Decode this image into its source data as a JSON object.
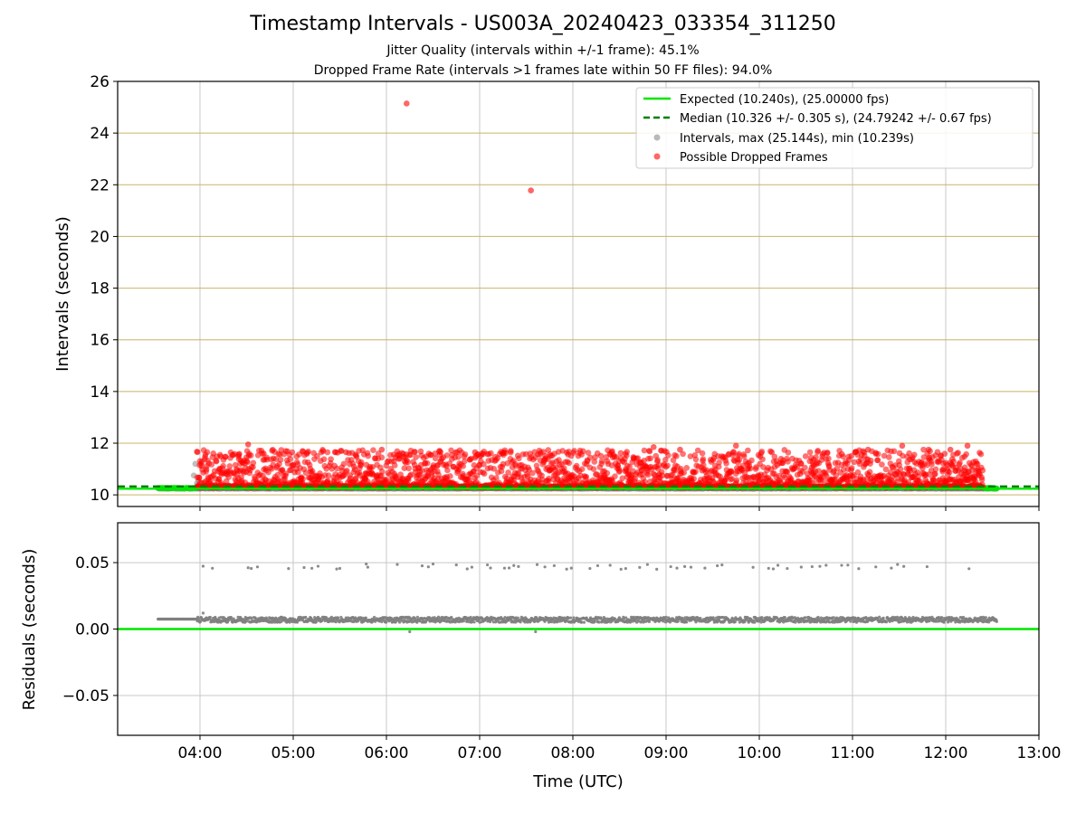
{
  "title": "Timestamp Intervals - US003A_20240423_033354_311250",
  "subtitle_1": "Jitter Quality (intervals within +/-1 frame): 45.1%",
  "subtitle_2": "Dropped Frame Rate (intervals >1 frames late within 50 FF files): 94.0%",
  "colors": {
    "expected": "#00e600",
    "median": "#007f00",
    "intervals": "#808080",
    "dropped": "#ff0000",
    "grid_top": "#c8b468",
    "grid": "#c8c8c8"
  },
  "chart_data": [
    {
      "type": "scatter",
      "panel": "top",
      "title": "",
      "xlabel": "",
      "ylabel": "Intervals (seconds)",
      "x_range": [
        "03:07",
        "13:00"
      ],
      "ylim": [
        9.55,
        26.0
      ],
      "y_ticks": [
        10,
        12,
        14,
        16,
        18,
        20,
        22,
        24,
        26
      ],
      "y_tick_labels": [
        "10",
        "12",
        "14",
        "16",
        "18",
        "20",
        "22",
        "24",
        "26"
      ],
      "grid": true,
      "legend_position": "top-right",
      "legend": [
        {
          "label": "Expected (10.240s), (25.00000 fps)",
          "style": "solid-line"
        },
        {
          "label": "Median (10.326 +/- 0.305 s), (24.79242 +/- 0.67 fps)",
          "style": "dashed-line"
        },
        {
          "label": "Intervals, max (25.144s), min (10.239s)",
          "style": "gray-point"
        },
        {
          "label": "Possible Dropped Frames",
          "style": "red-point"
        }
      ],
      "expected_value": 10.24,
      "median_value": 10.326,
      "series": [
        {
          "name": "Intervals, max (25.144s), min (10.239s)",
          "band": {
            "x_start": "03:33",
            "x_end": "12:33",
            "y_low": 10.239,
            "y_high": 10.29
          },
          "points": [
            {
              "x": "03:57",
              "y": 11.2
            },
            {
              "x": "03:56",
              "y": 10.75
            },
            {
              "x": "03:59",
              "y": 10.55
            },
            {
              "x": "03:58",
              "y": 10.45
            }
          ]
        },
        {
          "name": "Possible Dropped Frames",
          "band": {
            "x_start": "03:58",
            "x_end": "12:24",
            "y_low": 10.28,
            "y_high": 11.9
          },
          "points": [
            {
              "x": "06:13",
              "y": 25.144
            },
            {
              "x": "07:33",
              "y": 21.78
            },
            {
              "x": "04:31",
              "y": 11.95
            },
            {
              "x": "04:41",
              "y": 11.6
            },
            {
              "x": "04:25",
              "y": 11.55
            },
            {
              "x": "05:34",
              "y": 11.65
            },
            {
              "x": "05:57",
              "y": 11.75
            },
            {
              "x": "06:57",
              "y": 11.65
            },
            {
              "x": "07:20",
              "y": 11.7
            },
            {
              "x": "08:25",
              "y": 11.65
            },
            {
              "x": "08:52",
              "y": 11.85
            },
            {
              "x": "08:59",
              "y": 11.7
            },
            {
              "x": "09:09",
              "y": 11.75
            },
            {
              "x": "09:45",
              "y": 11.9
            },
            {
              "x": "10:08",
              "y": 11.65
            },
            {
              "x": "11:10",
              "y": 11.75
            },
            {
              "x": "11:32",
              "y": 11.9
            },
            {
              "x": "11:49",
              "y": 11.75
            },
            {
              "x": "12:14",
              "y": 11.9
            },
            {
              "x": "12:03",
              "y": 11.75
            }
          ]
        }
      ]
    },
    {
      "type": "scatter",
      "panel": "bottom",
      "title": "",
      "xlabel": "Time (UTC)",
      "ylabel": "Residuals (seconds)",
      "x_range": [
        "03:07",
        "13:00"
      ],
      "x_ticks": [
        "04:00",
        "05:00",
        "06:00",
        "07:00",
        "08:00",
        "09:00",
        "10:00",
        "11:00",
        "12:00",
        "13:00"
      ],
      "ylim": [
        -0.08,
        0.08
      ],
      "y_ticks": [
        0.05,
        0.0,
        -0.05
      ],
      "y_tick_labels": [
        "0.05",
        "0.00",
        "−0.05"
      ],
      "grid": true,
      "zero_line": 0.0,
      "series": [
        {
          "name": "",
          "main_band": {
            "x_start": "03:33",
            "x_end": "12:33",
            "y_center": 0.007
          },
          "upper_cluster_y": 0.047,
          "upper_points_x": [
            "04:02",
            "04:08",
            "04:31",
            "04:33",
            "04:37",
            "04:57",
            "05:07",
            "05:12",
            "05:16",
            "05:28",
            "05:30",
            "05:47",
            "05:48",
            "06:07",
            "06:23",
            "06:27",
            "06:30",
            "06:45",
            "06:52",
            "06:55",
            "07:05",
            "07:07",
            "07:16",
            "07:19",
            "07:22",
            "07:25",
            "07:37",
            "07:42",
            "07:48",
            "07:56",
            "07:59",
            "08:11",
            "08:16",
            "08:24",
            "08:31",
            "08:34",
            "08:43",
            "08:48",
            "08:54",
            "09:03",
            "09:07",
            "09:12",
            "09:16",
            "09:25",
            "09:33",
            "09:36",
            "09:56",
            "10:06",
            "10:09",
            "10:12",
            "10:18",
            "10:27",
            "10:34",
            "10:39",
            "10:43",
            "10:53",
            "10:57",
            "11:04",
            "11:15",
            "11:25",
            "11:29",
            "11:33",
            "11:48",
            "12:15"
          ],
          "outlier_points": [
            {
              "x": "04:02",
              "y": 0.012
            },
            {
              "x": "06:15",
              "y": -0.002
            },
            {
              "x": "07:36",
              "y": -0.002
            }
          ]
        }
      ]
    }
  ]
}
